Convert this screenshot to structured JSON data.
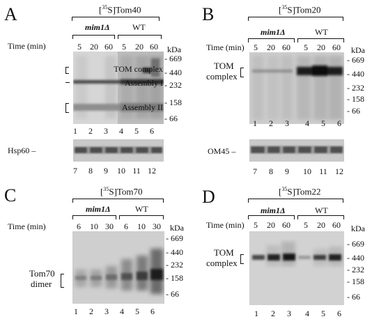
{
  "panels": [
    {
      "letter": "A",
      "title_pre": "[",
      "title_sup": "35",
      "title_post": "S]Tom40",
      "group_left": "mim1Δ",
      "group_right": "WT",
      "time_label": "Time (min)",
      "times": [
        "5",
        "20",
        "60",
        "5",
        "20",
        "60"
      ],
      "unit": "kDa",
      "markers": [
        "669",
        "440",
        "232",
        "158",
        "66"
      ],
      "bands": [
        "TOM complex",
        "Assembly I",
        "Assembly II"
      ],
      "lanes": [
        "1",
        "2",
        "3",
        "4",
        "5",
        "6"
      ],
      "sub_label": "Hsp60",
      "sub_lanes": [
        "7",
        "8",
        "9",
        "10",
        "11",
        "12"
      ]
    },
    {
      "letter": "B",
      "title_pre": "[",
      "title_sup": "35",
      "title_post": "S]Tom20",
      "group_left": "mim1Δ",
      "group_right": "WT",
      "time_label": "Time (min)",
      "times": [
        "5",
        "20",
        "60",
        "5",
        "20",
        "60"
      ],
      "unit": "kDa",
      "markers": [
        "669",
        "440",
        "232",
        "158",
        "66"
      ],
      "bands": [
        "TOM",
        "complex"
      ],
      "lanes": [
        "1",
        "2",
        "3",
        "4",
        "5",
        "6"
      ],
      "sub_label": "OM45",
      "sub_lanes": [
        "7",
        "8",
        "9",
        "10",
        "11",
        "12"
      ]
    },
    {
      "letter": "C",
      "title_pre": "[",
      "title_sup": "35",
      "title_post": "S]Tom70",
      "group_left": "mim1Δ",
      "group_right": "WT",
      "time_label": "Time (min)",
      "times": [
        "6",
        "10",
        "30",
        "6",
        "10",
        "30"
      ],
      "unit": "kDa",
      "markers": [
        "669",
        "440",
        "232",
        "158",
        "66"
      ],
      "bands": [
        "Tom70",
        "dimer"
      ],
      "lanes": [
        "1",
        "2",
        "3",
        "4",
        "5",
        "6"
      ]
    },
    {
      "letter": "D",
      "title_pre": "[",
      "title_sup": "35",
      "title_post": "S]Tom22",
      "group_left": "mim1Δ",
      "group_right": "WT",
      "time_label": "Time (min)",
      "times": [
        "5",
        "20",
        "60",
        "5",
        "20",
        "60"
      ],
      "unit": "kDa",
      "markers": [
        "669",
        "440",
        "232",
        "158",
        "66"
      ],
      "bands": [
        "TOM",
        "complex"
      ],
      "lanes": [
        "1",
        "2",
        "3",
        "4",
        "5",
        "6"
      ]
    }
  ]
}
